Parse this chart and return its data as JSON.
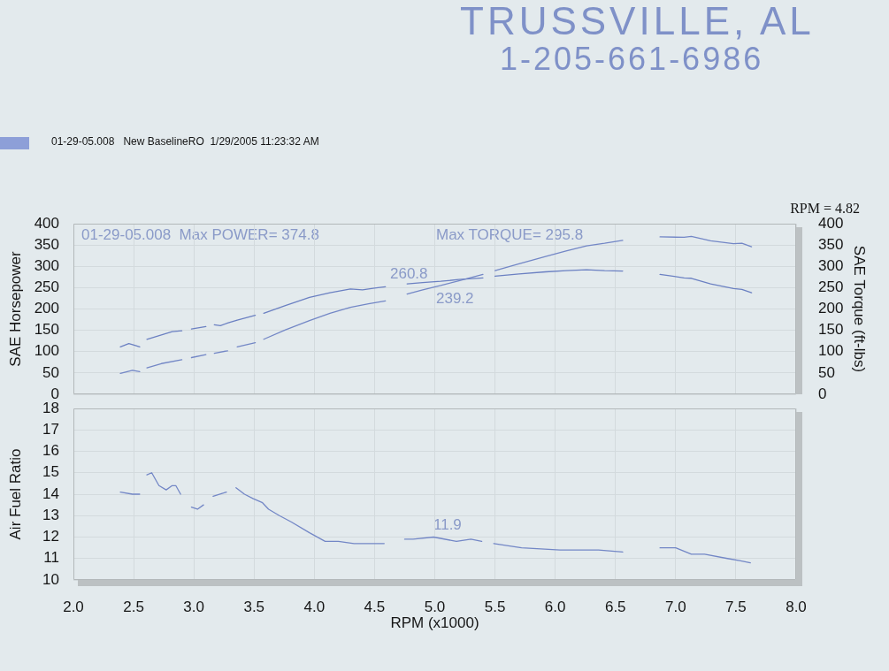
{
  "chart_data": [
    {
      "type": "line",
      "subtitle": "01-29-05.008   New BaselineRO  1/29/2005 11:23:32 AM",
      "ylabel": "SAE Horsepower",
      "y2label": "SAE Torque (ft-lbs)",
      "xlim": [
        2,
        8
      ],
      "xticks": [
        2,
        2.5,
        3,
        3.5,
        4,
        4.5,
        5,
        5.5,
        6,
        6.5,
        7,
        7.5,
        8
      ],
      "ylim": [
        0,
        400
      ],
      "yticks": [
        0,
        50,
        100,
        150,
        200,
        250,
        300,
        350,
        400
      ],
      "y2lim": [
        0,
        400
      ],
      "y2ticks": [
        0,
        50,
        100,
        150,
        200,
        250,
        300,
        350,
        400
      ],
      "grid": true,
      "tick_labels": "y",
      "annotations": [
        "TRUSSVILLE, AL",
        "1-205-661-6986",
        "RPM = 4.82",
        "01-29-05.008  Max POWER= 374.8",
        "Max TORQUE= 295.8",
        "260.8",
        "239.2"
      ],
      "series": [
        {
          "color": "#7387c6",
          "x": [
            2.39,
            2.49,
            2.55,
            2.58,
            2.61,
            2.73,
            2.9,
            2.94,
            2.98,
            3.1,
            3.14,
            3.17,
            3.28,
            3.32,
            3.36,
            3.51,
            3.55,
            3.58,
            3.76,
            3.96,
            4.13,
            4.3,
            4.45,
            4.59,
            4.68,
            4.77,
            4.9,
            5.05,
            5.2,
            5.4,
            5.45,
            5.5,
            5.7,
            5.92,
            6.09,
            6.26,
            6.41,
            6.56,
            6.7,
            6.87,
            7.07,
            7.13,
            7.29,
            7.48,
            7.55,
            7.63
          ],
          "values": [
            49,
            56,
            53,
            null,
            62,
            72,
            81,
            null,
            86,
            93,
            null,
            96,
            102,
            null,
            111,
            121,
            null,
            129,
            151,
            173,
            190,
            204,
            212,
            219,
            null,
            235,
            245,
            255,
            266,
            281,
            null,
            290,
            306,
            323,
            336,
            348,
            354,
            361,
            null,
            369,
            368,
            370,
            360,
            353,
            354,
            346
          ]
        },
        {
          "color": "#6b80c2",
          "axis": "y2",
          "x": [
            2.39,
            2.46,
            2.51,
            2.55,
            2.58,
            2.61,
            2.73,
            2.82,
            2.9,
            2.94,
            2.98,
            3.1,
            3.14,
            3.17,
            3.22,
            3.28,
            3.36,
            3.51,
            3.55,
            3.58,
            3.76,
            3.96,
            4.13,
            4.3,
            4.4,
            4.5,
            4.59,
            4.68,
            4.77,
            4.9,
            5.05,
            5.2,
            5.4,
            5.45,
            5.5,
            5.7,
            5.92,
            6.09,
            6.26,
            6.41,
            6.56,
            6.7,
            6.87,
            7.07,
            7.13,
            7.29,
            7.48,
            7.55,
            7.63
          ],
          "values": [
            111,
            119,
            115,
            111,
            null,
            129,
            139,
            147,
            149,
            null,
            153,
            159,
            null,
            163,
            161,
            167,
            174,
            185,
            null,
            190,
            208,
            227,
            238,
            247,
            245,
            249,
            252,
            null,
            259,
            262,
            265,
            269,
            273,
            null,
            277,
            282,
            287,
            290,
            292,
            290,
            289,
            null,
            281,
            273,
            272,
            259,
            248,
            246,
            238
          ]
        }
      ]
    },
    {
      "type": "line",
      "xlabel": "RPM (x1000)",
      "ylabel": "Air Fuel Ratio",
      "xlim": [
        2,
        8
      ],
      "xticks": [
        {
          "value": 2,
          "label": "2.0"
        },
        {
          "value": 2.5,
          "label": "2.5"
        },
        {
          "value": 3,
          "label": "3.0"
        },
        {
          "value": 3.5,
          "label": "3.5"
        },
        {
          "value": 4,
          "label": "4.0"
        },
        {
          "value": 4.5,
          "label": "4.5"
        },
        {
          "value": 5,
          "label": "5.0"
        },
        {
          "value": 5.5,
          "label": "5.5"
        },
        {
          "value": 6,
          "label": "6.0"
        },
        {
          "value": 6.5,
          "label": "6.5"
        },
        {
          "value": 7,
          "label": "7.0"
        },
        {
          "value": 7.5,
          "label": "7.5"
        },
        {
          "value": 8,
          "label": "8.0"
        }
      ],
      "ylim": [
        10,
        18
      ],
      "yticks": [
        10,
        11,
        12,
        13,
        14,
        15,
        16,
        17,
        18
      ],
      "grid": true,
      "annotations": [
        "11.9"
      ],
      "series": [
        {
          "color": "#7387c6",
          "x": [
            2.39,
            2.49,
            2.55,
            2.58,
            2.61,
            2.65,
            2.71,
            2.77,
            2.82,
            2.85,
            2.89,
            2.94,
            2.98,
            3.03,
            3.08,
            3.12,
            3.16,
            3.27,
            3.31,
            3.35,
            3.42,
            3.49,
            3.57,
            3.62,
            3.71,
            3.81,
            3.96,
            4.09,
            4.2,
            4.33,
            4.47,
            4.58,
            4.67,
            4.75,
            4.82,
            4.99,
            5.18,
            5.3,
            5.39,
            5.44,
            5.49,
            5.72,
            6.04,
            6.16,
            6.36,
            6.56,
            6.7,
            6.87,
            7,
            7.13,
            7.24,
            7.43,
            7.53,
            7.62
          ],
          "values": [
            14.1,
            14.0,
            14.0,
            null,
            14.9,
            15.0,
            14.4,
            14.2,
            14.4,
            14.4,
            14.0,
            null,
            13.4,
            13.3,
            13.5,
            null,
            13.9,
            14.1,
            null,
            14.3,
            14.0,
            13.8,
            13.6,
            13.3,
            13.0,
            12.7,
            12.2,
            11.8,
            11.8,
            11.7,
            11.7,
            11.7,
            null,
            11.9,
            11.9,
            12.0,
            11.8,
            11.9,
            11.8,
            null,
            11.7,
            11.5,
            11.4,
            11.4,
            11.4,
            11.3,
            null,
            11.5,
            11.5,
            11.2,
            11.2,
            11.0,
            10.9,
            10.8
          ]
        }
      ]
    }
  ]
}
